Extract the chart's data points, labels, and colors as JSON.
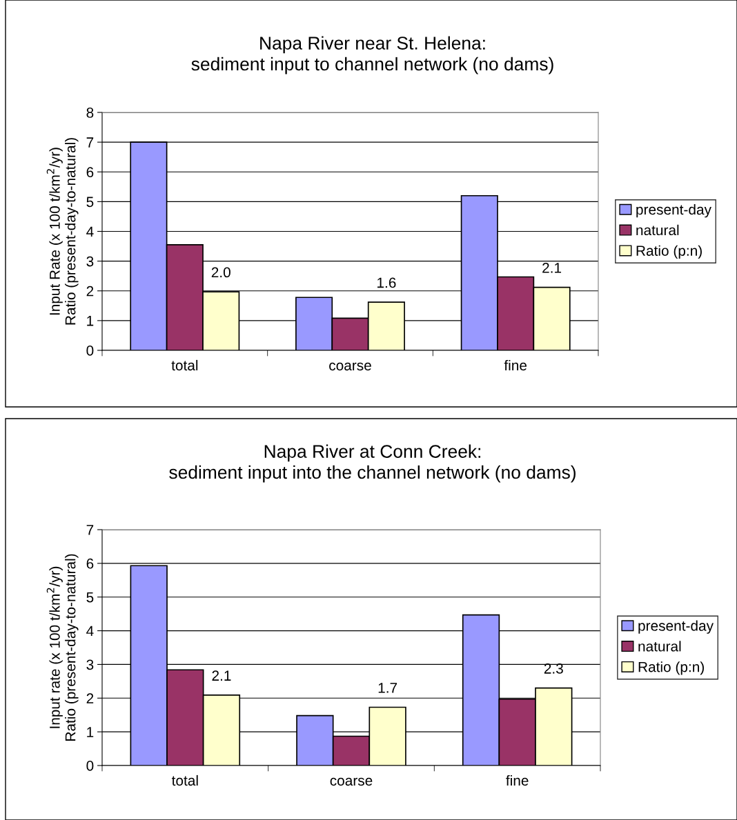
{
  "chart_data": [
    {
      "type": "bar",
      "title": "Napa River near St. Helena:\nsediment input to channel network (no dams)",
      "ylabel": "Input Rate (x 100 t/km$^{2}$/yr)\nRatio (present-day-to-natural)",
      "categories": [
        "total",
        "coarse",
        "fine"
      ],
      "series": [
        {
          "name": "present-day",
          "color": "#9999ff",
          "values": [
            7.0,
            1.78,
            5.2
          ]
        },
        {
          "name": "natural",
          "color": "#993366",
          "values": [
            3.55,
            1.08,
            2.47
          ]
        },
        {
          "name": "Ratio (p:n)",
          "color": "#ffffcc",
          "values": [
            1.97,
            1.62,
            2.12
          ],
          "value_labels": [
            "2.0",
            "1.6",
            "2.1"
          ]
        }
      ],
      "ylim": [
        0,
        8
      ],
      "yticks": [
        0,
        1,
        2,
        3,
        4,
        5,
        6,
        7,
        8
      ],
      "grid": "y",
      "legend": "right"
    },
    {
      "type": "bar",
      "title": "Napa River at Conn Creek:\nsediment input into the channel network (no dams)",
      "ylabel": "Input rate (x 100 t/km$^{2}$/yr)\nRatio (present-day-to-natural)",
      "categories": [
        "total",
        "coarse",
        "fine"
      ],
      "series": [
        {
          "name": "present-day",
          "color": "#9999ff",
          "values": [
            5.93,
            1.48,
            4.47
          ]
        },
        {
          "name": "natural",
          "color": "#993366",
          "values": [
            2.84,
            0.87,
            1.97
          ]
        },
        {
          "name": "Ratio (p:n)",
          "color": "#ffffcc",
          "values": [
            2.09,
            1.73,
            2.3
          ],
          "value_labels": [
            "2.1",
            "1.7",
            "2.3"
          ]
        }
      ],
      "ylim": [
        0,
        7
      ],
      "yticks": [
        0,
        1,
        2,
        3,
        4,
        5,
        6,
        7
      ],
      "grid": "y",
      "legend": "right"
    }
  ]
}
